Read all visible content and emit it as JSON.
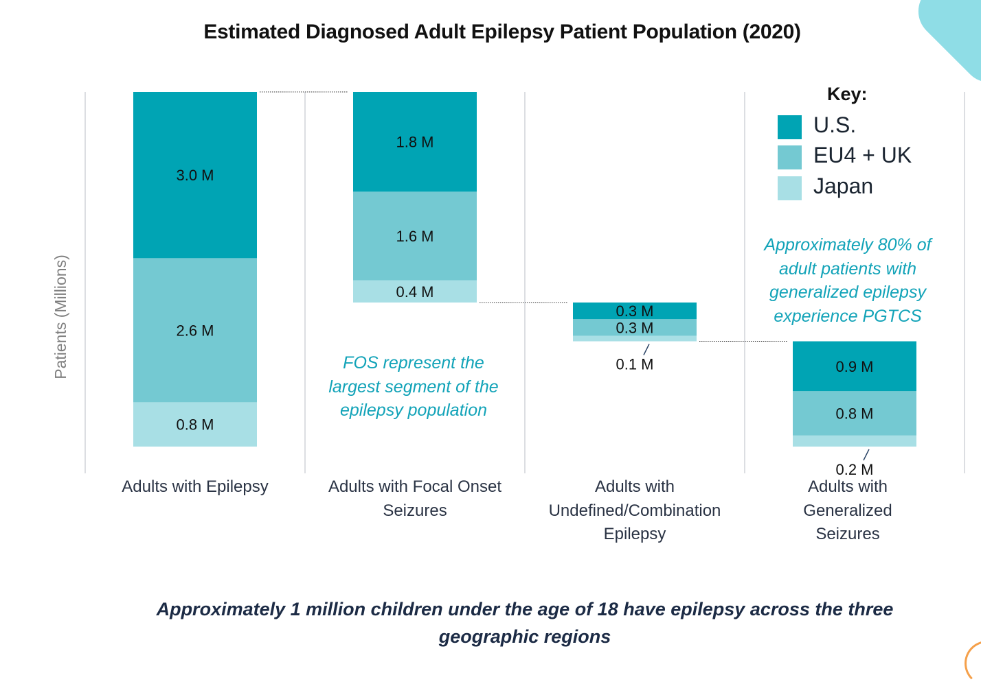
{
  "colors": {
    "us": "#00a4b4",
    "eu": "#74c9d2",
    "japan": "#a8dfe5",
    "note_text": "#12a3b8",
    "divider": "#d0d4d8"
  },
  "legend": {
    "title": "Key:",
    "items": [
      {
        "label": "U.S.",
        "color": "#00a4b4"
      },
      {
        "label": "EU4 + UK",
        "color": "#74c9d2"
      },
      {
        "label": "Japan",
        "color": "#a8dfe5"
      }
    ]
  },
  "notes": {
    "fos": [
      "FOS represent the",
      "largest segment of the",
      "epilepsy population"
    ],
    "pgtcs": [
      "Approximately 80% of",
      "adult patients with",
      "generalized epilepsy",
      "experience PGTCS"
    ]
  },
  "footer": {
    "line1": "Approximately 1 million children under the age of 18 have epilepsy across the three",
    "line2": "geographic regions"
  },
  "chart_data": {
    "type": "waterfall-stacked-bar",
    "title": "Estimated Diagnosed Adult Epilepsy Patient Population (2020)",
    "ylabel": "Patients (Millions)",
    "xlabel": "",
    "ylim": [
      0,
      6.4
    ],
    "grid": false,
    "legend_position": "top-right",
    "categories": [
      [
        "Adults with Epilepsy"
      ],
      [
        "Adults with Focal Onset",
        "Seizures"
      ],
      [
        "Adults with",
        "Undefined/Combination",
        "Epilepsy"
      ],
      [
        "Adults with",
        "Generalized",
        "Seizures"
      ]
    ],
    "bars": [
      {
        "base": 0.0,
        "segments": [
          {
            "series": "Japan",
            "value": 0.8,
            "label": "0.8 M"
          },
          {
            "series": "EU4 + UK",
            "value": 2.6,
            "label": "2.6 M"
          },
          {
            "series": "U.S.",
            "value": 3.0,
            "label": "3.0 M"
          }
        ]
      },
      {
        "base": 2.6,
        "segments": [
          {
            "series": "Japan",
            "value": 0.4,
            "label": "0.4 M"
          },
          {
            "series": "EU4 + UK",
            "value": 1.6,
            "label": "1.6 M"
          },
          {
            "series": "U.S.",
            "value": 1.8,
            "label": "1.8 M"
          }
        ]
      },
      {
        "base": 1.9,
        "segments": [
          {
            "series": "Japan",
            "value": 0.1,
            "label": "0.1 M"
          },
          {
            "series": "EU4 + UK",
            "value": 0.3,
            "label": "0.3 M"
          },
          {
            "series": "U.S.",
            "value": 0.3,
            "label": "0.3 M"
          }
        ]
      },
      {
        "base": 0.0,
        "segments": [
          {
            "series": "Japan",
            "value": 0.2,
            "label": "0.2 M"
          },
          {
            "series": "EU4 + UK",
            "value": 0.8,
            "label": "0.8 M"
          },
          {
            "series": "U.S.",
            "value": 0.9,
            "label": "0.9 M"
          }
        ]
      }
    ]
  }
}
